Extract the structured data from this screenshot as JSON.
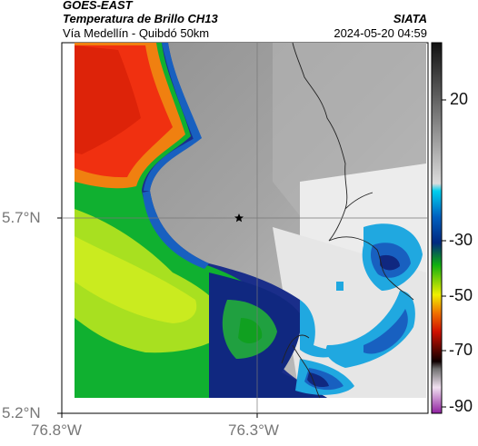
{
  "header": {
    "title": "GOES-EAST",
    "subtitle": "Temperatura de Brillo CH13",
    "route": "Vía Medellín - Quibdó 50km",
    "source": "SIATA",
    "datetime": "2024-05-20 04:59"
  },
  "axes": {
    "lat_ticks": [
      "5.7°N",
      "5.2°N"
    ],
    "lon_ticks": [
      "76.8°W",
      "76.3°W"
    ]
  },
  "colorbar": {
    "ticks": [
      "20",
      "-30",
      "-50",
      "-70",
      "-90"
    ],
    "colors": {
      "warm_gray": "#3a3a3a",
      "light_gray": "#f2f2f2",
      "cyan": "#00c8e8",
      "blue": "#0040a0",
      "green": "#20b020",
      "yellow": "#f0f000",
      "red": "#e02000",
      "dark": "#200000",
      "magenta": "#c040c0"
    }
  },
  "map": {
    "marker": "star-icon",
    "colors": {
      "background_gray": "#9a9a9a",
      "clear_sky": "#e8e8e8",
      "cloud_red": "#f03010",
      "cloud_orange": "#f08010",
      "cloud_green": "#40c040",
      "cloud_lime": "#a0e020",
      "cloud_blue": "#1860c0",
      "cloud_navy": "#102880",
      "cloud_cyan": "#20a8e0"
    }
  }
}
